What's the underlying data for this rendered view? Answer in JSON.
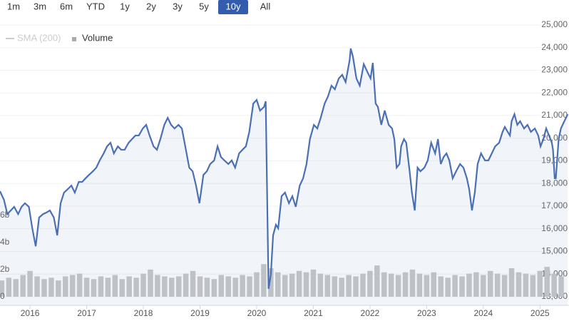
{
  "chart_data": {
    "type": "line",
    "range_buttons": [
      "1m",
      "3m",
      "6m",
      "YTD",
      "1y",
      "2y",
      "3y",
      "5y",
      "10y",
      "All"
    ],
    "selected_range": "10y",
    "legend": [
      "SMA (200)",
      "Volume"
    ],
    "xlim": [
      2015.47,
      2025.5
    ],
    "xticks": [
      2016,
      2017,
      2018,
      2019,
      2020,
      2021,
      2022,
      2023,
      2024,
      2025
    ],
    "ylim": [
      13000,
      25000
    ],
    "yticks": [
      {
        "value": 13000,
        "label": "13,000"
      },
      {
        "value": 14000,
        "label": "14,000"
      },
      {
        "value": 15000,
        "label": "15,000"
      },
      {
        "value": 16000,
        "label": "16,000"
      },
      {
        "value": 17000,
        "label": "17,000"
      },
      {
        "value": 18000,
        "label": "18,000"
      },
      {
        "value": 19000,
        "label": "19,000"
      },
      {
        "value": 20000,
        "label": "20,000"
      },
      {
        "value": 21000,
        "label": "21,000"
      },
      {
        "value": 22000,
        "label": "22,000"
      },
      {
        "value": 23000,
        "label": "23,000"
      },
      {
        "value": 24000,
        "label": "24,000"
      },
      {
        "value": 25000,
        "label": "25,000"
      }
    ],
    "y2lim": [
      0,
      20
    ],
    "y2ticks": [
      0,
      {
        "value": 2,
        "label": "2b"
      },
      {
        "value": 4,
        "label": "4b"
      },
      {
        "value": 6,
        "label": "6b"
      }
    ],
    "x": [
      2015.47,
      2015.54,
      2015.6,
      2015.66,
      2015.72,
      2015.79,
      2015.85,
      2015.91,
      2015.98,
      2016.04,
      2016.1,
      2016.16,
      2016.23,
      2016.29,
      2016.35,
      2016.42,
      2016.48,
      2016.54,
      2016.6,
      2016.67,
      2016.73,
      2016.79,
      2016.86,
      2016.92,
      2016.98,
      2017.04,
      2017.11,
      2017.17,
      2017.23,
      2017.3,
      2017.36,
      2017.42,
      2017.48,
      2017.55,
      2017.61,
      2017.67,
      2017.74,
      2017.8,
      2017.86,
      2017.92,
      2017.99,
      2018.05,
      2018.11,
      2018.18,
      2018.24,
      2018.3,
      2018.37,
      2018.43,
      2018.49,
      2018.55,
      2018.62,
      2018.68,
      2018.74,
      2018.81,
      2018.87,
      2018.93,
      2018.99,
      2019.06,
      2019.12,
      2019.18,
      2019.25,
      2019.31,
      2019.37,
      2019.43,
      2019.5,
      2019.56,
      2019.62,
      2019.69,
      2019.75,
      2019.81,
      2019.87,
      2019.94,
      2020.0,
      2020.06,
      2020.13,
      2020.16,
      2020.21,
      2020.25,
      2020.29,
      2020.34,
      2020.38,
      2020.44,
      2020.5,
      2020.57,
      2020.63,
      2020.69,
      2020.76,
      2020.82,
      2020.88,
      2020.94,
      2021.01,
      2021.07,
      2021.13,
      2021.2,
      2021.26,
      2021.32,
      2021.38,
      2021.45,
      2021.51,
      2021.57,
      2021.64,
      2021.66,
      2021.7,
      2021.76,
      2021.82,
      2021.89,
      2021.95,
      2022.01,
      2022.05,
      2022.1,
      2022.14,
      2022.2,
      2022.26,
      2022.33,
      2022.39,
      2022.43,
      2022.47,
      2022.52,
      2022.55,
      2022.6,
      2022.64,
      2022.7,
      2022.74,
      2022.79,
      2022.84,
      2022.89,
      2022.96,
      2023.02,
      2023.08,
      2023.15,
      2023.2,
      2023.25,
      2023.3,
      2023.35,
      2023.4,
      2023.46,
      2023.52,
      2023.59,
      2023.65,
      2023.71,
      2023.75,
      2023.8,
      2023.85,
      2023.9,
      2023.96,
      2024.03,
      2024.09,
      2024.15,
      2024.21,
      2024.28,
      2024.34,
      2024.38,
      2024.43,
      2024.47,
      2024.5,
      2024.55,
      2024.6,
      2024.65,
      2024.72,
      2024.78,
      2024.84,
      2024.91,
      2024.97,
      2025.01,
      2025.06,
      2025.11,
      2025.16,
      2025.21,
      2025.23,
      2025.26,
      2025.28,
      2025.33,
      2025.37,
      2025.43,
      2025.49
    ],
    "series": [
      {
        "color": "#4a6fb3",
        "values": [
          17660,
          17280,
          16650,
          16810,
          16970,
          16650,
          16970,
          17130,
          16970,
          16020,
          15230,
          16500,
          16650,
          16720,
          16810,
          16500,
          15710,
          17130,
          17600,
          17760,
          17910,
          17600,
          18070,
          18070,
          18230,
          18380,
          18540,
          18700,
          19020,
          19330,
          19640,
          19800,
          19330,
          19640,
          19490,
          19490,
          19800,
          19960,
          20120,
          20120,
          20430,
          20590,
          20120,
          19640,
          19490,
          19960,
          20590,
          20900,
          20590,
          20430,
          20590,
          20430,
          19640,
          18700,
          18540,
          17910,
          17130,
          18380,
          18540,
          18860,
          19020,
          19640,
          19170,
          19020,
          18860,
          19020,
          18700,
          19330,
          19490,
          19640,
          20280,
          21530,
          21690,
          21220,
          21380,
          21630,
          13350,
          13980,
          15710,
          16180,
          16020,
          17440,
          17600,
          17130,
          17440,
          16970,
          17910,
          18230,
          18860,
          19960,
          20590,
          20430,
          20900,
          21530,
          21850,
          22320,
          22160,
          22640,
          22800,
          22480,
          23430,
          23960,
          23590,
          22640,
          22320,
          23270,
          22950,
          22640,
          23330,
          21530,
          21380,
          20590,
          21220,
          20590,
          20430,
          19960,
          18700,
          18860,
          19640,
          19960,
          19800,
          18540,
          17600,
          16810,
          18700,
          18540,
          18700,
          19020,
          19800,
          19330,
          19960,
          18860,
          19170,
          19330,
          19020,
          18230,
          18540,
          18860,
          18700,
          18230,
          17760,
          16810,
          17600,
          18860,
          19330,
          19020,
          19020,
          19330,
          19640,
          19800,
          20280,
          20500,
          20280,
          20120,
          20750,
          21060,
          20590,
          20750,
          20430,
          20590,
          20280,
          20430,
          20120,
          19640,
          19960,
          20430,
          20120,
          19800,
          19490,
          18230,
          18230,
          19960,
          20430,
          20750,
          21060
        ]
      },
      {
        "name": "Volume",
        "axis": "y2",
        "color": "#c8c8c8",
        "x": [
          2015.5,
          2015.625,
          2015.75,
          2015.875,
          2016,
          2016.125,
          2016.25,
          2016.375,
          2016.5,
          2016.625,
          2016.75,
          2016.875,
          2017,
          2017.125,
          2017.25,
          2017.375,
          2017.5,
          2017.625,
          2017.75,
          2017.875,
          2018,
          2018.125,
          2018.25,
          2018.375,
          2018.5,
          2018.625,
          2018.75,
          2018.875,
          2019,
          2019.125,
          2019.25,
          2019.375,
          2019.5,
          2019.625,
          2019.75,
          2019.875,
          2020,
          2020.125,
          2020.25,
          2020.375,
          2020.5,
          2020.625,
          2020.75,
          2020.875,
          2021,
          2021.125,
          2021.25,
          2021.375,
          2021.5,
          2021.625,
          2021.75,
          2021.875,
          2022,
          2022.125,
          2022.25,
          2022.375,
          2022.5,
          2022.625,
          2022.75,
          2022.875,
          2023,
          2023.125,
          2023.25,
          2023.375,
          2023.5,
          2023.625,
          2023.75,
          2023.875,
          2024,
          2024.125,
          2024.25,
          2024.375,
          2024.5,
          2024.625,
          2024.75,
          2024.875,
          2025,
          2025.125,
          2025.25,
          2025.375
        ],
        "values": [
          1.2,
          1.4,
          1.3,
          1.6,
          1.9,
          1.5,
          1.3,
          1.4,
          1.2,
          1.5,
          1.6,
          1.7,
          1.4,
          1.3,
          1.5,
          1.4,
          1.6,
          1.3,
          1.5,
          1.4,
          1.7,
          2.0,
          1.6,
          1.5,
          1.4,
          1.5,
          1.7,
          1.9,
          1.5,
          1.4,
          1.3,
          1.6,
          1.5,
          1.4,
          1.6,
          1.5,
          1.8,
          2.4,
          2.1,
          1.8,
          1.6,
          1.7,
          1.9,
          1.8,
          2.0,
          1.7,
          1.6,
          1.5,
          1.4,
          1.6,
          1.5,
          1.7,
          1.9,
          2.3,
          1.8,
          1.7,
          1.6,
          1.8,
          2.0,
          1.7,
          1.6,
          1.8,
          1.5,
          1.4,
          1.6,
          1.5,
          1.7,
          1.8,
          1.6,
          1.9,
          1.7,
          1.6,
          2.1,
          1.8,
          1.7,
          1.6,
          1.9,
          2.2,
          1.7,
          1.5
        ]
      }
    ]
  }
}
